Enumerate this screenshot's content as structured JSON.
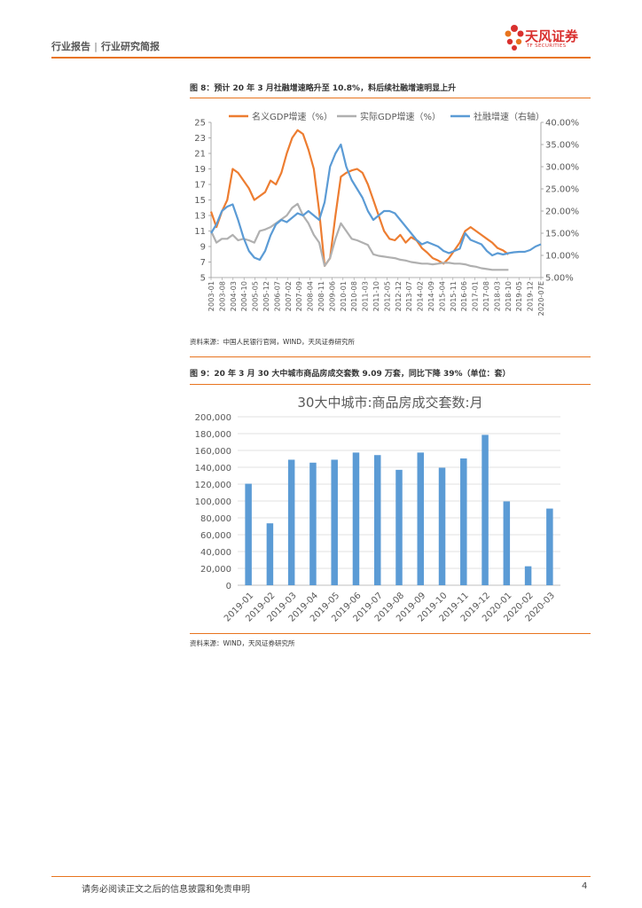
{
  "header": {
    "category": "行业报告",
    "subcategory": "行业研究简报",
    "separator": "|"
  },
  "logo": {
    "name": "天风证券",
    "sub": "TF SECURITIES",
    "color": "#d9302e"
  },
  "figure8": {
    "title": "图 8：预计 20 年 3 月社融增速略升至 10.8%，料后续社融增速明显上升",
    "source": "资料来源：中国人民银行官网，WIND，天风证券研究所"
  },
  "figure9": {
    "title": "图 9：20 年 3 月 30 大中城市商品房成交套数 9.09 万套，同比下降 39%（单位：套）",
    "source": "资料来源：WIND，天风证券研究所"
  },
  "footer": {
    "disclaimer": "请务必阅读正文之后的信息披露和免责申明",
    "page": "4"
  },
  "colors": {
    "accent": "#e8741e",
    "orange": "#ed7d31",
    "gray": "#b0b0b0",
    "blue": "#5b9bd5"
  },
  "chart_data": [
    {
      "type": "line",
      "title": "",
      "legend": [
        "名义GDP增速（%）",
        "实际GDP增速（%）",
        "社融增速（右轴）"
      ],
      "legend_position": "top",
      "x_ticks": [
        "2003-01",
        "2003-08",
        "2004-03",
        "2004-10",
        "2005-05",
        "2005-12",
        "2006-07",
        "2007-02",
        "2007-09",
        "2008-04",
        "2008-11",
        "2009-06",
        "2010-01",
        "2010-08",
        "2011-03",
        "2011-10",
        "2012-05",
        "2012-12",
        "2013-07",
        "2014-02",
        "2014-09",
        "2015-04",
        "2015-11",
        "2016-06",
        "2017-01",
        "2017-08",
        "2018-03",
        "2018-10",
        "2019-05",
        "2019-12",
        "2020-07E"
      ],
      "y_left": {
        "min": 5,
        "max": 25,
        "ticks": [
          "5",
          "7",
          "9",
          "11",
          "13",
          "15",
          "17",
          "19",
          "21",
          "23",
          "25"
        ]
      },
      "y_right": {
        "min": 5,
        "max": 40,
        "ticks": [
          "5.00%",
          "10.00%",
          "15.00%",
          "20.00%",
          "25.00%",
          "30.00%",
          "35.00%",
          "40.00%"
        ]
      },
      "series": [
        {
          "name": "名义GDP增速（%）",
          "axis": "left",
          "color": "#ed7d31",
          "points": [
            [
              0,
              13.5
            ],
            [
              1,
              11.5
            ],
            [
              2,
              13.5
            ],
            [
              3,
              15
            ],
            [
              4,
              19
            ],
            [
              5,
              18.5
            ],
            [
              6,
              17.5
            ],
            [
              7,
              16.5
            ],
            [
              8,
              15
            ],
            [
              9,
              15.5
            ],
            [
              10,
              16
            ],
            [
              11,
              17.5
            ],
            [
              12,
              17
            ],
            [
              13,
              18.5
            ],
            [
              14,
              21
            ],
            [
              15,
              23
            ],
            [
              16,
              24
            ],
            [
              17,
              23.5
            ],
            [
              18,
              21.5
            ],
            [
              19,
              19
            ],
            [
              20,
              13.5
            ],
            [
              21,
              6.5
            ],
            [
              22,
              7.5
            ],
            [
              23,
              13
            ],
            [
              24,
              18
            ],
            [
              25,
              18.5
            ],
            [
              26,
              18.8
            ],
            [
              27,
              19
            ],
            [
              28,
              18.5
            ],
            [
              29,
              17
            ],
            [
              30,
              15
            ],
            [
              31,
              13
            ],
            [
              32,
              11
            ],
            [
              33,
              10
            ],
            [
              34,
              9.8
            ],
            [
              35,
              10.5
            ],
            [
              36,
              9.5
            ],
            [
              37,
              10.2
            ],
            [
              38,
              9.8
            ],
            [
              39,
              8.8
            ],
            [
              40,
              8.2
            ],
            [
              41,
              7.5
            ],
            [
              42,
              7.2
            ],
            [
              43,
              6.8
            ],
            [
              44,
              7.5
            ],
            [
              45,
              8.5
            ],
            [
              46,
              9.5
            ],
            [
              47,
              11
            ],
            [
              48,
              11.5
            ],
            [
              49,
              11
            ],
            [
              50,
              10.5
            ],
            [
              51,
              10
            ],
            [
              52,
              9.5
            ],
            [
              53,
              8.8
            ],
            [
              54,
              8.5
            ],
            [
              55,
              8
            ]
          ]
        },
        {
          "name": "实际GDP增速（%）",
          "axis": "left",
          "color": "#b0b0b0",
          "points": [
            [
              0,
              11
            ],
            [
              1,
              9.5
            ],
            [
              2,
              10
            ],
            [
              3,
              10
            ],
            [
              4,
              10.5
            ],
            [
              5,
              9.8
            ],
            [
              6,
              10
            ],
            [
              7,
              9.8
            ],
            [
              8,
              9.5
            ],
            [
              9,
              11
            ],
            [
              10,
              11.2
            ],
            [
              11,
              11.5
            ],
            [
              12,
              12
            ],
            [
              13,
              12.5
            ],
            [
              14,
              13
            ],
            [
              15,
              14
            ],
            [
              16,
              14.5
            ],
            [
              17,
              13
            ],
            [
              18,
              12
            ],
            [
              19,
              10.5
            ],
            [
              20,
              9.5
            ],
            [
              21,
              6.5
            ],
            [
              22,
              7.5
            ],
            [
              23,
              10
            ],
            [
              24,
              12
            ],
            [
              25,
              11
            ],
            [
              26,
              10
            ],
            [
              27,
              9.8
            ],
            [
              28,
              9.5
            ],
            [
              29,
              9.2
            ],
            [
              30,
              8
            ],
            [
              31,
              7.8
            ],
            [
              32,
              7.7
            ],
            [
              33,
              7.6
            ],
            [
              34,
              7.5
            ],
            [
              35,
              7.3
            ],
            [
              36,
              7.2
            ],
            [
              37,
              7
            ],
            [
              38,
              6.9
            ],
            [
              39,
              6.8
            ],
            [
              40,
              6.8
            ],
            [
              41,
              6.7
            ],
            [
              42,
              6.8
            ],
            [
              43,
              6.9
            ],
            [
              44,
              6.9
            ],
            [
              45,
              6.8
            ],
            [
              46,
              6.8
            ],
            [
              47,
              6.7
            ],
            [
              48,
              6.5
            ],
            [
              49,
              6.4
            ],
            [
              50,
              6.2
            ],
            [
              51,
              6.1
            ],
            [
              52,
              6
            ],
            [
              53,
              6
            ],
            [
              54,
              6
            ],
            [
              55,
              6
            ]
          ]
        },
        {
          "name": "社融增速（右轴）",
          "axis": "right",
          "color": "#5b9bd5",
          "points": [
            [
              0,
              15
            ],
            [
              1,
              17
            ],
            [
              2,
              20
            ],
            [
              3,
              21
            ],
            [
              4,
              21.5
            ],
            [
              5,
              18
            ],
            [
              6,
              14
            ],
            [
              7,
              11
            ],
            [
              8,
              9.5
            ],
            [
              9,
              9
            ],
            [
              10,
              11
            ],
            [
              11,
              14.5
            ],
            [
              12,
              17
            ],
            [
              13,
              18
            ],
            [
              14,
              17.5
            ],
            [
              15,
              18.5
            ],
            [
              16,
              19.5
            ],
            [
              17,
              19
            ],
            [
              18,
              20
            ],
            [
              19,
              19
            ],
            [
              20,
              18
            ],
            [
              21,
              22
            ],
            [
              22,
              30
            ],
            [
              23,
              33
            ],
            [
              24,
              35
            ],
            [
              25,
              30
            ],
            [
              26,
              27
            ],
            [
              27,
              25
            ],
            [
              28,
              23
            ],
            [
              29,
              20
            ],
            [
              30,
              18
            ],
            [
              31,
              19
            ],
            [
              32,
              20
            ],
            [
              33,
              20
            ],
            [
              34,
              19.5
            ],
            [
              35,
              18
            ],
            [
              36,
              16.5
            ],
            [
              37,
              15
            ],
            [
              38,
              13.5
            ],
            [
              39,
              12.5
            ],
            [
              40,
              13
            ],
            [
              41,
              12.5
            ],
            [
              42,
              12
            ],
            [
              43,
              11
            ],
            [
              44,
              10.5
            ],
            [
              45,
              11
            ],
            [
              46,
              11.5
            ],
            [
              47,
              15
            ],
            [
              48,
              13.5
            ],
            [
              49,
              13
            ],
            [
              50,
              12.5
            ],
            [
              51,
              11
            ],
            [
              52,
              10
            ],
            [
              53,
              10.5
            ],
            [
              54,
              10.2
            ],
            [
              55,
              10.5
            ],
            [
              56,
              10.7
            ],
            [
              57,
              10.8
            ],
            [
              58,
              10.8
            ],
            [
              59,
              11.2
            ],
            [
              60,
              12
            ],
            [
              61,
              12.5
            ]
          ]
        }
      ]
    },
    {
      "type": "bar",
      "title": "30大中城市:商品房成交套数:月",
      "categories": [
        "2019-01",
        "2019-02",
        "2019-03",
        "2019-04",
        "2019-05",
        "2019-06",
        "2019-07",
        "2019-08",
        "2019-09",
        "2019-10",
        "2019-11",
        "2019-12",
        "2020-01",
        "2020-02",
        "2020-03"
      ],
      "values": [
        120500,
        73500,
        149000,
        145500,
        149000,
        157500,
        154500,
        137000,
        157500,
        139500,
        150500,
        178500,
        99500,
        22500,
        91000
      ],
      "y_ticks": [
        "0",
        "20,000",
        "40,000",
        "60,000",
        "80,000",
        "100,000",
        "120,000",
        "140,000",
        "160,000",
        "180,000",
        "200,000"
      ],
      "ylim": [
        0,
        200000
      ],
      "color": "#5b9bd5"
    }
  ]
}
